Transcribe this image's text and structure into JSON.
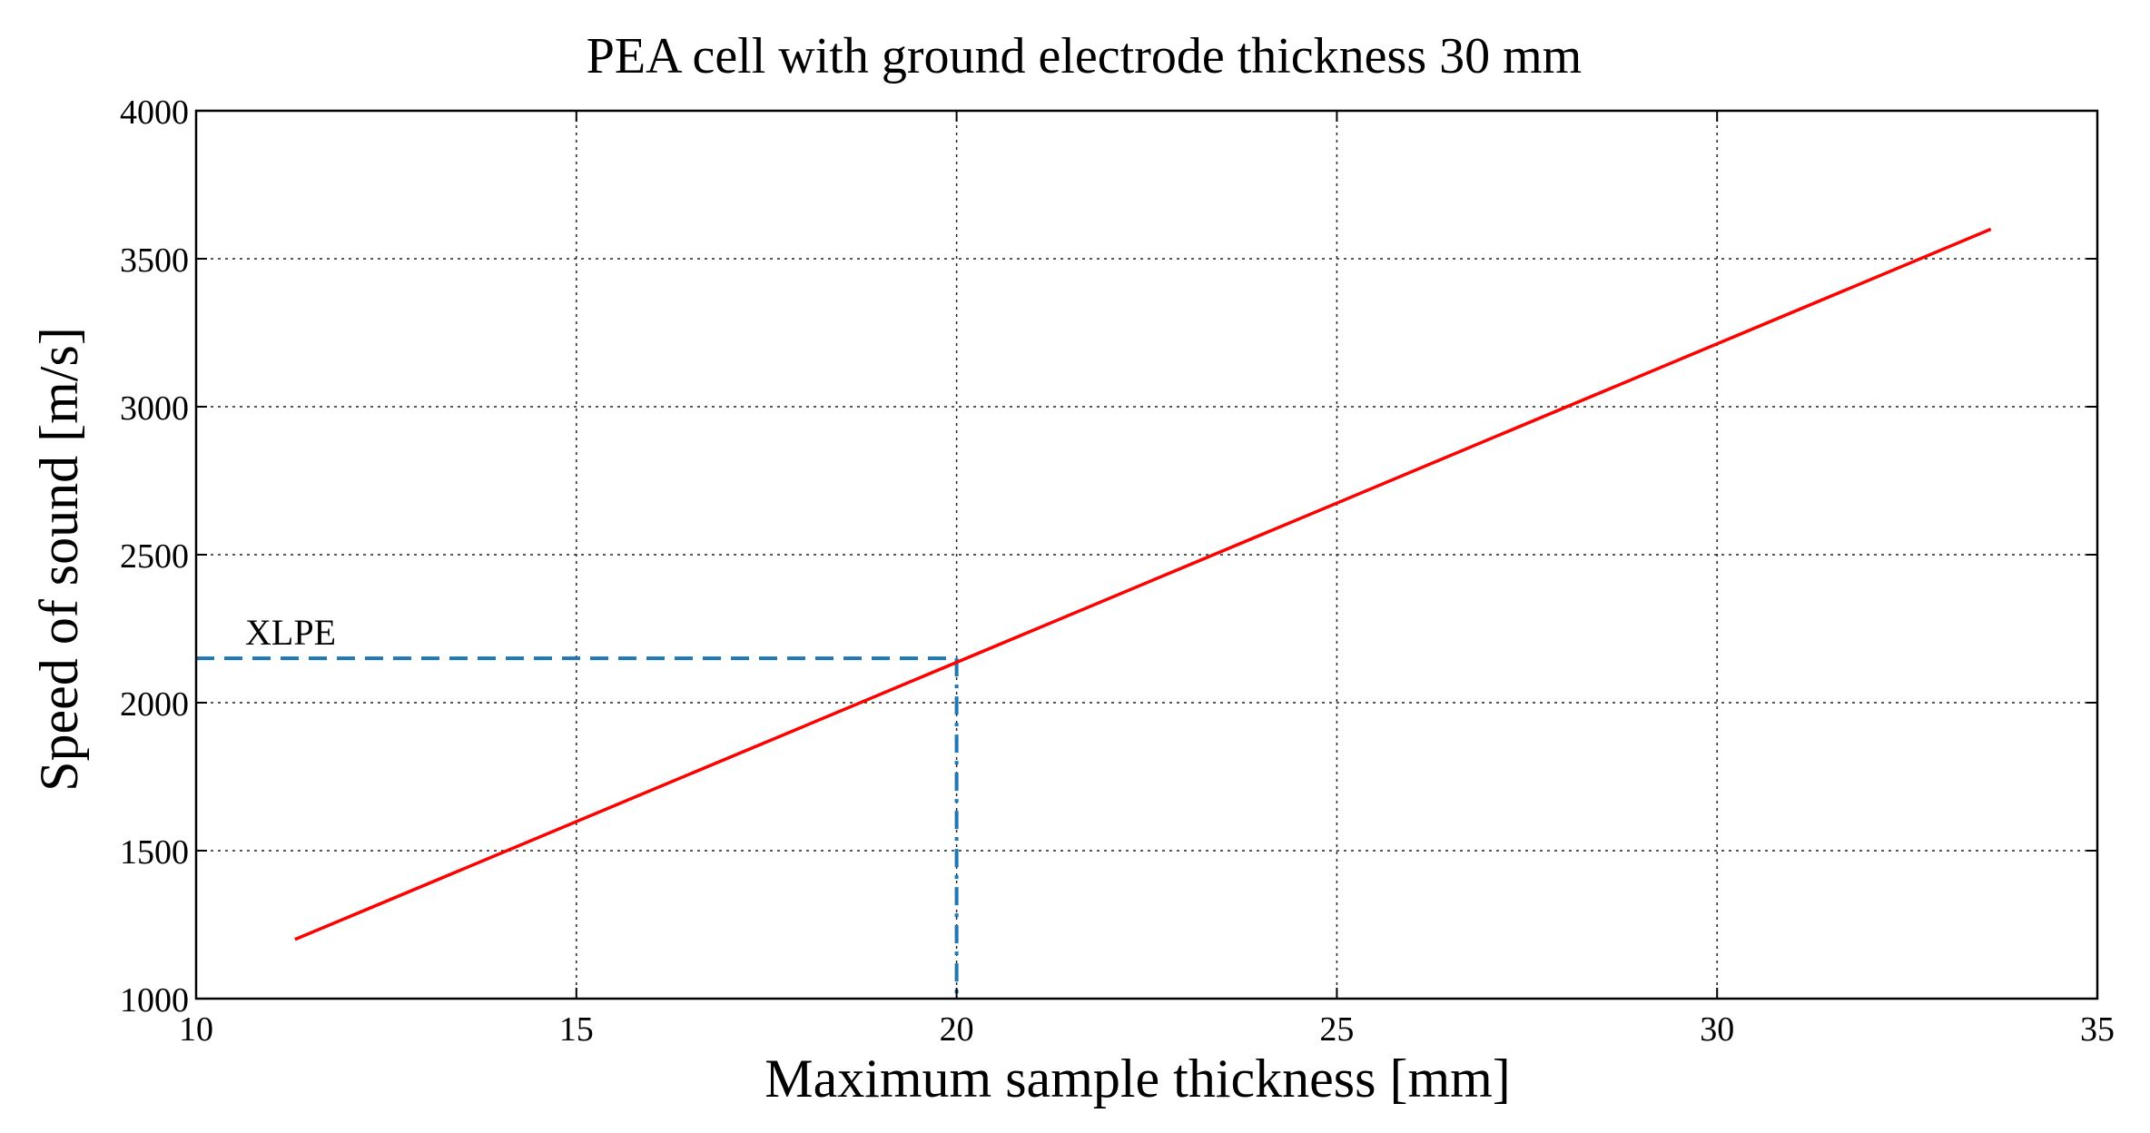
{
  "chart_data": {
    "type": "line",
    "title": "PEA cell with ground electrode thickness 30 mm",
    "xlabel": "Maximum sample thickness [mm]",
    "ylabel": "Speed of sound [m/s]",
    "xlim": [
      10,
      35
    ],
    "ylim": [
      1000,
      4000
    ],
    "xticks": [
      10,
      15,
      20,
      25,
      30,
      35
    ],
    "yticks": [
      1000,
      1500,
      2000,
      2500,
      3000,
      3500,
      4000
    ],
    "grid": true,
    "series": [
      {
        "name": "Speed of sound vs maximum sample thickness",
        "color": "#ff0000",
        "style": "solid",
        "x": [
          11.3,
          33.6
        ],
        "y": [
          1200,
          3600
        ]
      }
    ],
    "annotations": [
      {
        "label": "XLPE",
        "x": 20,
        "y": 2150,
        "color": "#1f77b4",
        "style": "dashed"
      }
    ]
  }
}
